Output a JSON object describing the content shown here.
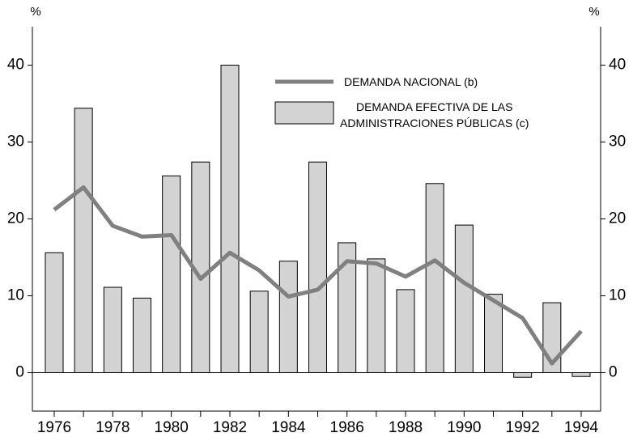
{
  "chart_data": {
    "type": "bar",
    "y_label": "%",
    "y2_label": "%",
    "categories": [
      "1976",
      null,
      "1978",
      null,
      "1980",
      null,
      "1982",
      null,
      "1984",
      null,
      "1986",
      null,
      "1988",
      null,
      "1990",
      null,
      "1992",
      null,
      "1994"
    ],
    "series": [
      {
        "name": "DEMANDA EFECTIVA DE LAS\nADMINISTRACIONES PÚBLICAS (c)",
        "type": "bar",
        "color": "#d3d3d3",
        "values": [
          15.6,
          34.4,
          11.1,
          9.7,
          25.6,
          27.4,
          40,
          10.6,
          14.5,
          27.4,
          16.9,
          14.8,
          10.8,
          24.6,
          19.2,
          10.2,
          -0.6,
          9.1,
          -0.5
        ]
      },
      {
        "name": "DEMANDA NACIONAL (b)",
        "type": "line",
        "color": "#808080",
        "values": [
          21.2,
          24.1,
          19.1,
          17.7,
          17.9,
          12.2,
          15.6,
          13.3,
          9.9,
          10.8,
          14.5,
          14.2,
          12.5,
          14.6,
          11.7,
          9.4,
          7.1,
          1.2,
          5.4
        ]
      }
    ],
    "ylim": [
      -5,
      45
    ],
    "yticks": [
      0,
      10,
      20,
      30,
      40
    ],
    "y2lim": [
      -5,
      45
    ],
    "y2ticks": [
      0,
      10,
      20,
      30,
      40
    ],
    "grid": false
  }
}
